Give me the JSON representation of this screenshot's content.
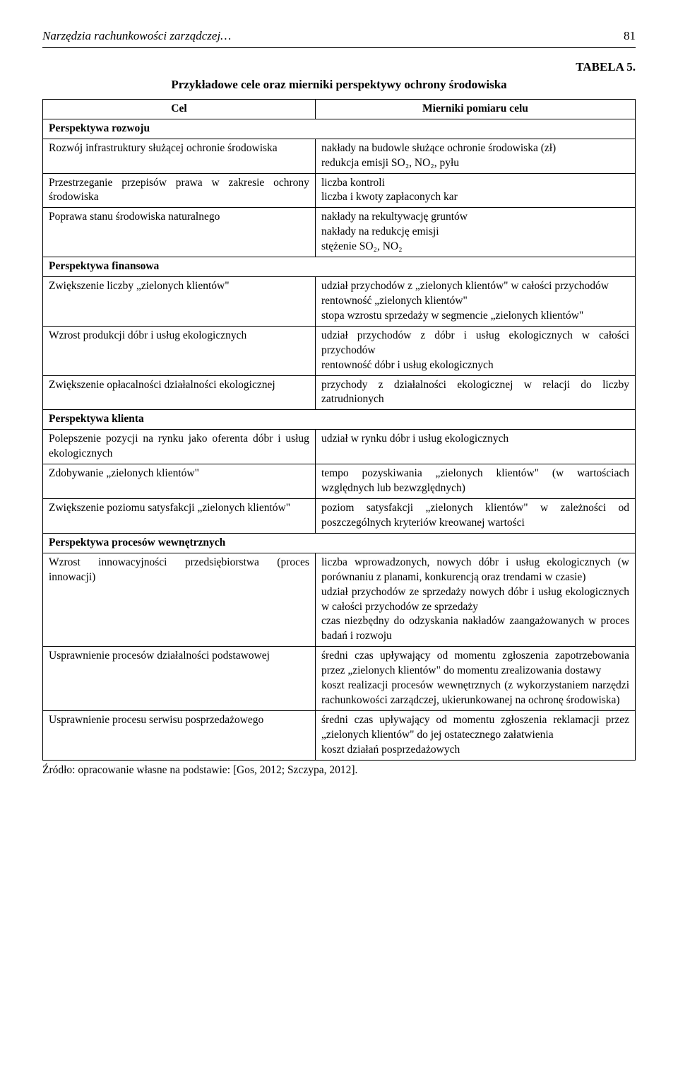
{
  "header": {
    "title": "Narzędzia rachunkowości zarządczej…",
    "page": "81"
  },
  "tabela_label": "TABELA 5.",
  "table_title": "Przykładowe cele oraz mierniki perspektywy ochrony środowiska",
  "columns": {
    "left": "Cel",
    "right": "Mierniki pomiaru celu"
  },
  "sections": [
    {
      "header": "Perspektywa rozwoju",
      "rows": [
        {
          "cel": "Rozwój infrastruktury służącej ochronie środowiska",
          "mierniki": "nakłady na budowle służące ochronie środowiska (zł)\nredukcja emisji SO₂, NO₂, pyłu"
        },
        {
          "cel": "Przestrzeganie przepisów prawa w zakresie ochrony środowiska",
          "mierniki": "liczba kontroli\nliczba i kwoty zapłaconych kar"
        },
        {
          "cel": "Poprawa stanu środowiska naturalnego",
          "mierniki": "nakłady na rekultywację gruntów\nnakłady na redukcję emisji\nstężenie SO₂, NO₂"
        }
      ]
    },
    {
      "header": "Perspektywa finansowa",
      "rows": [
        {
          "cel": "Zwiększenie liczby „zielonych klientów\"",
          "mierniki": "udział przychodów z „zielonych klientów\" w całości przychodów\nrentowność „zielonych klientów\"\nstopa wzrostu sprzedaży w segmencie „zielonych klientów\""
        },
        {
          "cel": "Wzrost produkcji dóbr i usług ekologicznych",
          "mierniki": "udział przychodów z dóbr i usług ekologicznych w całości przychodów\nrentowność dóbr i usług ekologicznych"
        },
        {
          "cel": "Zwiększenie opłacalności działalności ekologicznej",
          "mierniki": "przychody z działalności ekologicznej w relacji do liczby zatrudnionych"
        }
      ]
    },
    {
      "header": "Perspektywa klienta",
      "rows": [
        {
          "cel": "Polepszenie pozycji na rynku jako oferenta dóbr i usług ekologicznych",
          "mierniki": "udział w rynku dóbr i usług ekologicznych"
        },
        {
          "cel": "Zdobywanie „zielonych klientów\"",
          "mierniki": "tempo pozyskiwania „zielonych klientów\" (w wartościach względnych lub bezwzględnych)"
        },
        {
          "cel": "Zwiększenie poziomu satysfakcji „zielonych klientów\"",
          "mierniki": "poziom satysfakcji „zielonych klientów\" w zależności od poszczególnych kryteriów kreowanej wartości"
        }
      ]
    },
    {
      "header": "Perspektywa procesów wewnętrznych",
      "rows": [
        {
          "cel": "Wzrost innowacyjności przedsiębiorstwa (proces innowacji)",
          "mierniki": "liczba wprowadzonych, nowych dóbr i usług ekologicznych (w porównaniu z planami, konkurencją oraz trendami w czasie)\nudział przychodów ze sprzedaży nowych dóbr i usług ekologicznych w całości przychodów ze sprzedaży\nczas niezbędny do odzyskania nakładów zaangażowanych w proces badań i rozwoju"
        },
        {
          "cel": "Usprawnienie procesów działalności podstawowej",
          "mierniki": "średni czas upływający od momentu zgłoszenia zapotrzebowania przez „zielonych klientów\" do momentu zrealizowania dostawy\nkoszt realizacji procesów wewnętrznych (z wykorzystaniem narzędzi rachunkowości zarządczej, ukierunkowanej na ochronę środowiska)"
        },
        {
          "cel": "Usprawnienie procesu serwisu posprzedażowego",
          "mierniki": "średni czas upływający od momentu zgłoszenia reklamacji przez „zielonych klientów\" do jej ostatecznego załatwienia\nkoszt działań posprzedażowych"
        }
      ]
    }
  ],
  "source": "Źródło: opracowanie własne na podstawie: [Gos, 2012; Szczypa, 2012]."
}
